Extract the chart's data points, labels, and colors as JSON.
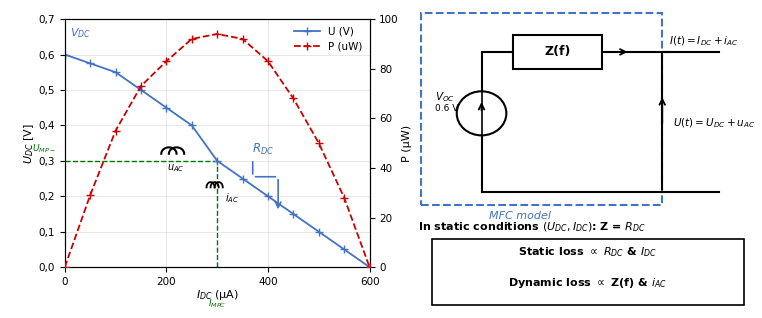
{
  "xlim": [
    0,
    600
  ],
  "ylim_left": [
    0,
    0.7
  ],
  "ylim_right": [
    0,
    100
  ],
  "xticks": [
    0,
    200,
    400,
    600
  ],
  "yticks_left": [
    0,
    0.1,
    0.2,
    0.3,
    0.4,
    0.5,
    0.6,
    0.7
  ],
  "yticks_right": [
    0,
    20,
    40,
    60,
    80,
    100
  ],
  "U_x": [
    0,
    50,
    100,
    150,
    200,
    250,
    300,
    350,
    400,
    450,
    500,
    550,
    600
  ],
  "U_y": [
    0.6,
    0.575,
    0.55,
    0.5,
    0.45,
    0.4,
    0.3,
    0.25,
    0.2,
    0.15,
    0.1,
    0.05,
    0.0
  ],
  "P_x": [
    0,
    50,
    100,
    150,
    200,
    250,
    300,
    350,
    400,
    450,
    500,
    550,
    600
  ],
  "P_y": [
    0,
    29,
    55,
    73,
    83,
    92,
    94,
    92,
    83,
    68,
    50,
    28,
    0
  ],
  "U_color": "#4472C4",
  "P_color": "#CC0000",
  "green_color": "#007700",
  "R_DC_color": "#4472C4",
  "mfc_box_color": "#4472C4",
  "UMP_y": 0.3,
  "IMP_x": 300,
  "bg_color": "#FFFFFF"
}
